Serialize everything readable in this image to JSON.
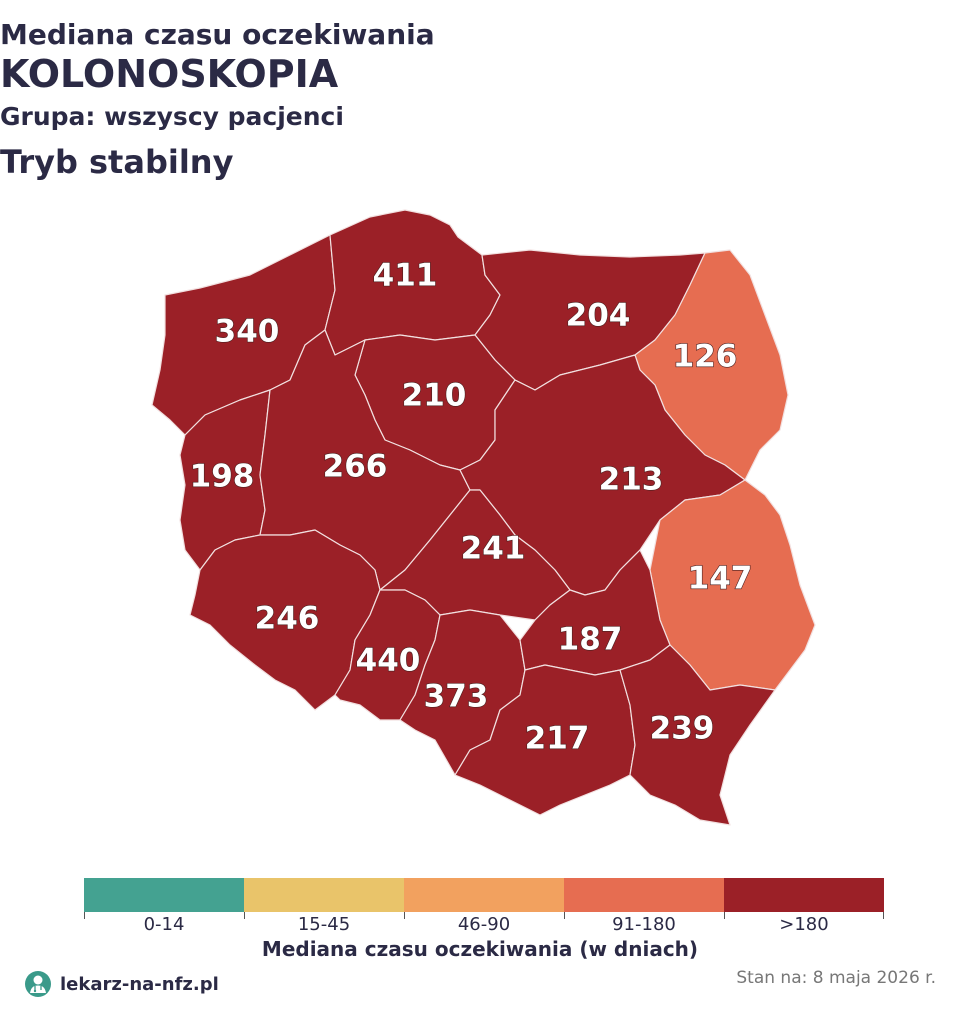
{
  "header": {
    "line1": "Mediana czasu oczekiwania",
    "line2": "KOLONOSKOPIA",
    "line3": "Grupa: wszyscy pacjenci",
    "line4": "Tryb stabilny"
  },
  "map": {
    "regions": [
      {
        "key": "zachodniopomorskie",
        "value": "340",
        "color": "#9b2027"
      },
      {
        "key": "pomorskie",
        "value": "411",
        "color": "#9b2027"
      },
      {
        "key": "warminsko-mazurskie",
        "value": "204",
        "color": "#9b2027"
      },
      {
        "key": "podlaskie",
        "value": "126",
        "color": "#e66d51"
      },
      {
        "key": "kujawsko-pomorskie",
        "value": "210",
        "color": "#9b2027"
      },
      {
        "key": "lubuskie",
        "value": "198",
        "color": "#9b2027"
      },
      {
        "key": "wielkopolskie",
        "value": "266",
        "color": "#9b2027"
      },
      {
        "key": "mazowieckie",
        "value": "213",
        "color": "#9b2027"
      },
      {
        "key": "lodzkie",
        "value": "241",
        "color": "#9b2027"
      },
      {
        "key": "lubelskie",
        "value": "147",
        "color": "#e66d51"
      },
      {
        "key": "dolnoslaskie",
        "value": "246",
        "color": "#9b2027"
      },
      {
        "key": "opolskie",
        "value": "440",
        "color": "#9b2027"
      },
      {
        "key": "slaskie",
        "value": "373",
        "color": "#9b2027"
      },
      {
        "key": "swietokrzyskie",
        "value": "187",
        "color": "#9b2027"
      },
      {
        "key": "malopolskie",
        "value": "217",
        "color": "#9b2027"
      },
      {
        "key": "podkarpackie",
        "value": "239",
        "color": "#9b2027"
      }
    ]
  },
  "legend": {
    "segments": [
      {
        "label": "0-14",
        "color": "#44a291"
      },
      {
        "label": "15-45",
        "color": "#e9c46a"
      },
      {
        "label": "46-90",
        "color": "#f2a15f"
      },
      {
        "label": "91-180",
        "color": "#e66d51"
      },
      {
        "label": ">180",
        "color": "#9b2027"
      }
    ],
    "title": "Mediana czasu oczekiwania (w dniach)"
  },
  "footer": {
    "brand": "lekarz-na-nfz.pl",
    "brand_icon": "doctor-avatar-icon",
    "stamp": "Stan na: 8 maja 2026 r."
  }
}
